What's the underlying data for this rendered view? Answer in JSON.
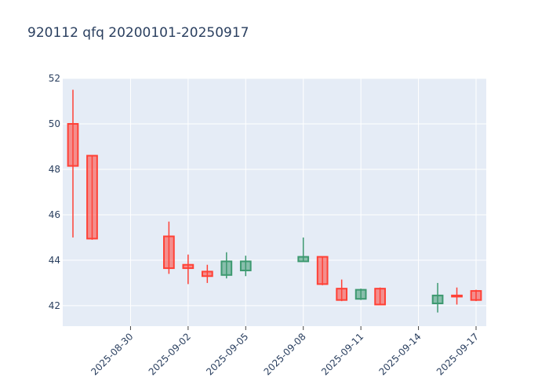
{
  "chart_data": {
    "type": "candlestick",
    "title": "920112 qfq 20200101-20250917",
    "xlabel": "",
    "ylabel": "",
    "ylim": [
      41.1,
      52
    ],
    "xlim": [
      "2025-08-27",
      "2025-09-17"
    ],
    "grid": true,
    "colors": {
      "increasing": "#FF4136",
      "decreasing": "#3D9970",
      "plot_bg": "#E5ECF6",
      "grid": "#ffffff",
      "text": "#2a3f5f"
    },
    "y_ticks": [
      42,
      44,
      46,
      48,
      50,
      52
    ],
    "x_ticks": [
      "2025-08-30",
      "2025-09-02",
      "2025-09-05",
      "2025-09-08",
      "2025-09-11",
      "2025-09-14",
      "2025-09-17"
    ],
    "candles": [
      {
        "date": "2025-08-27",
        "open": 48.15,
        "high": 51.5,
        "low": 45.0,
        "close": 50.0
      },
      {
        "date": "2025-08-28",
        "open": 44.95,
        "high": 48.6,
        "low": 44.9,
        "close": 48.6
      },
      {
        "date": "2025-09-01",
        "open": 43.65,
        "high": 45.7,
        "low": 43.4,
        "close": 45.05
      },
      {
        "date": "2025-09-02",
        "open": 43.65,
        "high": 44.25,
        "low": 42.95,
        "close": 43.8
      },
      {
        "date": "2025-09-03",
        "open": 43.3,
        "high": 43.8,
        "low": 43.0,
        "close": 43.5
      },
      {
        "date": "2025-09-04",
        "open": 43.95,
        "high": 44.35,
        "low": 43.2,
        "close": 43.35
      },
      {
        "date": "2025-09-05",
        "open": 43.95,
        "high": 44.2,
        "low": 43.3,
        "close": 43.55
      },
      {
        "date": "2025-09-08",
        "open": 44.15,
        "high": 45.0,
        "low": 43.95,
        "close": 43.95
      },
      {
        "date": "2025-09-09",
        "open": 42.95,
        "high": 44.15,
        "low": 42.9,
        "close": 44.15
      },
      {
        "date": "2025-09-10",
        "open": 42.25,
        "high": 43.15,
        "low": 42.2,
        "close": 42.75
      },
      {
        "date": "2025-09-11",
        "open": 42.7,
        "high": 42.75,
        "low": 42.25,
        "close": 42.3
      },
      {
        "date": "2025-09-12",
        "open": 42.05,
        "high": 42.8,
        "low": 42.05,
        "close": 42.75
      },
      {
        "date": "2025-09-15",
        "open": 42.45,
        "high": 43.0,
        "low": 41.7,
        "close": 42.1
      },
      {
        "date": "2025-09-16",
        "open": 42.4,
        "high": 42.8,
        "low": 42.05,
        "close": 42.45
      },
      {
        "date": "2025-09-17",
        "open": 42.25,
        "high": 42.7,
        "low": 42.2,
        "close": 42.65
      }
    ]
  }
}
